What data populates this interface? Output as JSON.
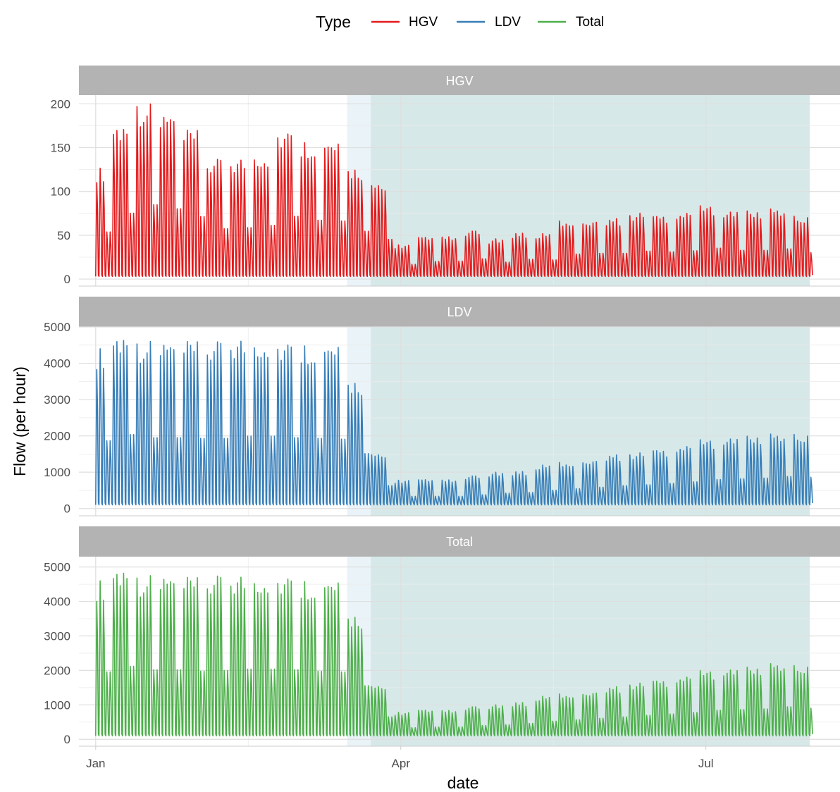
{
  "chart_data": {
    "type": "line",
    "xlabel": "date",
    "ylabel": "Flow (per hour)",
    "legend": {
      "title": "Type",
      "position": "top",
      "entries": [
        {
          "name": "HGV",
          "color": "#e41a1c"
        },
        {
          "name": "LDV",
          "color": "#377eb8"
        },
        {
          "name": "Total",
          "color": "#4daf4a"
        }
      ]
    },
    "x_ticks": [
      "Jan",
      "Apr",
      "Jul"
    ],
    "x_tick_dates": [
      "2020-01-01",
      "2020-04-01",
      "2020-07-01"
    ],
    "xlim": [
      "2019-12-27",
      "2020-08-10"
    ],
    "data_range": [
      "2020-01-01",
      "2020-08-01"
    ],
    "shaded_regions": [
      {
        "start": "2020-03-16",
        "end": "2020-03-23",
        "color": "#eaf3f8"
      },
      {
        "start": "2020-03-23",
        "end": "2020-08-01",
        "color": "#d7e8e8"
      }
    ],
    "grid": true,
    "panels": [
      {
        "strip": "HGV",
        "color": "#e41a1c",
        "ylim": [
          -8,
          210
        ],
        "y_ticks": [
          "0",
          "50",
          "100",
          "150",
          "200"
        ],
        "y_tick_values": [
          0,
          50,
          100,
          150,
          200
        ],
        "series": {
          "name": "HGV",
          "weekly_peaks": [
            {
              "week_of": "2020-01-01",
              "peak": 128
            },
            {
              "week_of": "2020-01-06",
              "peak": 179
            },
            {
              "week_of": "2020-01-13",
              "peak": 202
            },
            {
              "week_of": "2020-01-20",
              "peak": 191
            },
            {
              "week_of": "2020-01-27",
              "peak": 170
            },
            {
              "week_of": "2020-02-03",
              "peak": 137
            },
            {
              "week_of": "2020-02-10",
              "peak": 140
            },
            {
              "week_of": "2020-02-17",
              "peak": 146
            },
            {
              "week_of": "2020-02-24",
              "peak": 171
            },
            {
              "week_of": "2020-03-02",
              "peak": 160
            },
            {
              "week_of": "2020-03-09",
              "peak": 158
            },
            {
              "week_of": "2020-03-16",
              "peak": 130
            },
            {
              "week_of": "2020-03-23",
              "peak": 108
            },
            {
              "week_of": "2020-03-30",
              "peak": 40
            },
            {
              "week_of": "2020-04-06",
              "peak": 48
            },
            {
              "week_of": "2020-04-13",
              "peak": 49
            },
            {
              "week_of": "2020-04-20",
              "peak": 55
            },
            {
              "week_of": "2020-04-27",
              "peak": 46
            },
            {
              "week_of": "2020-05-04",
              "peak": 54
            },
            {
              "week_of": "2020-05-11",
              "peak": 52
            },
            {
              "week_of": "2020-05-18",
              "peak": 68
            },
            {
              "week_of": "2020-05-25",
              "peak": 70
            },
            {
              "week_of": "2020-06-01",
              "peak": 70
            },
            {
              "week_of": "2020-06-08",
              "peak": 76
            },
            {
              "week_of": "2020-06-15",
              "peak": 74
            },
            {
              "week_of": "2020-06-22",
              "peak": 77
            },
            {
              "week_of": "2020-06-29",
              "peak": 84
            },
            {
              "week_of": "2020-07-06",
              "peak": 78
            },
            {
              "week_of": "2020-07-13",
              "peak": 78
            },
            {
              "week_of": "2020-07-20",
              "peak": 82
            },
            {
              "week_of": "2020-07-27",
              "peak": 72
            }
          ],
          "typical_trough": 3
        }
      },
      {
        "strip": "LDV",
        "color": "#377eb8",
        "ylim": [
          -200,
          5000
        ],
        "y_ticks": [
          "0",
          "1000",
          "2000",
          "3000",
          "4000",
          "5000"
        ],
        "y_tick_values": [
          0,
          1000,
          2000,
          3000,
          4000,
          5000
        ],
        "series": {
          "name": "LDV",
          "weekly_peaks": [
            {
              "week_of": "2020-01-01",
              "peak": 4450
            },
            {
              "week_of": "2020-01-06",
              "peak": 4850
            },
            {
              "week_of": "2020-01-13",
              "peak": 4650
            },
            {
              "week_of": "2020-01-20",
              "peak": 4650
            },
            {
              "week_of": "2020-01-27",
              "peak": 4600
            },
            {
              "week_of": "2020-02-03",
              "peak": 4600
            },
            {
              "week_of": "2020-02-10",
              "peak": 4750
            },
            {
              "week_of": "2020-02-17",
              "peak": 4750
            },
            {
              "week_of": "2020-02-24",
              "peak": 4650
            },
            {
              "week_of": "2020-03-02",
              "peak": 4600
            },
            {
              "week_of": "2020-03-09",
              "peak": 4550
            },
            {
              "week_of": "2020-03-16",
              "peak": 3600
            },
            {
              "week_of": "2020-03-23",
              "peak": 1500
            },
            {
              "week_of": "2020-03-30",
              "peak": 800
            },
            {
              "week_of": "2020-04-06",
              "peak": 800
            },
            {
              "week_of": "2020-04-13",
              "peak": 800
            },
            {
              "week_of": "2020-04-20",
              "peak": 900
            },
            {
              "week_of": "2020-04-27",
              "peak": 1000
            },
            {
              "week_of": "2020-05-04",
              "peak": 1050
            },
            {
              "week_of": "2020-05-11",
              "peak": 1200
            },
            {
              "week_of": "2020-05-18",
              "peak": 1300
            },
            {
              "week_of": "2020-05-25",
              "peak": 1400
            },
            {
              "week_of": "2020-06-01",
              "peak": 1500
            },
            {
              "week_of": "2020-06-08",
              "peak": 1550
            },
            {
              "week_of": "2020-06-15",
              "peak": 1650
            },
            {
              "week_of": "2020-06-22",
              "peak": 1750
            },
            {
              "week_of": "2020-06-29",
              "peak": 1900
            },
            {
              "week_of": "2020-07-06",
              "peak": 1950
            },
            {
              "week_of": "2020-07-13",
              "peak": 2000
            },
            {
              "week_of": "2020-07-20",
              "peak": 2100
            },
            {
              "week_of": "2020-07-27",
              "peak": 2050
            }
          ],
          "typical_trough": 100
        }
      },
      {
        "strip": "Total",
        "color": "#4daf4a",
        "ylim": [
          -200,
          5300
        ],
        "y_ticks": [
          "0",
          "1000",
          "2000",
          "3000",
          "4000",
          "5000"
        ],
        "y_tick_values": [
          0,
          1000,
          2000,
          3000,
          4000,
          5000
        ],
        "series": {
          "name": "Total",
          "weekly_peaks": [
            {
              "week_of": "2020-01-01",
              "peak": 4650
            },
            {
              "week_of": "2020-01-06",
              "peak": 5050
            },
            {
              "week_of": "2020-01-13",
              "peak": 4800
            },
            {
              "week_of": "2020-01-20",
              "peak": 4800
            },
            {
              "week_of": "2020-01-27",
              "peak": 4700
            },
            {
              "week_of": "2020-02-03",
              "peak": 4750
            },
            {
              "week_of": "2020-02-10",
              "peak": 4850
            },
            {
              "week_of": "2020-02-17",
              "peak": 4850
            },
            {
              "week_of": "2020-02-24",
              "peak": 4800
            },
            {
              "week_of": "2020-03-02",
              "peak": 4700
            },
            {
              "week_of": "2020-03-09",
              "peak": 4650
            },
            {
              "week_of": "2020-03-16",
              "peak": 3700
            },
            {
              "week_of": "2020-03-23",
              "peak": 1550
            },
            {
              "week_of": "2020-03-30",
              "peak": 800
            },
            {
              "week_of": "2020-04-06",
              "peak": 850
            },
            {
              "week_of": "2020-04-13",
              "peak": 850
            },
            {
              "week_of": "2020-04-20",
              "peak": 950
            },
            {
              "week_of": "2020-04-27",
              "peak": 1000
            },
            {
              "week_of": "2020-05-04",
              "peak": 1100
            },
            {
              "week_of": "2020-05-11",
              "peak": 1250
            },
            {
              "week_of": "2020-05-18",
              "peak": 1350
            },
            {
              "week_of": "2020-05-25",
              "peak": 1450
            },
            {
              "week_of": "2020-06-01",
              "peak": 1550
            },
            {
              "week_of": "2020-06-08",
              "peak": 1650
            },
            {
              "week_of": "2020-06-15",
              "peak": 1750
            },
            {
              "week_of": "2020-06-22",
              "peak": 1850
            },
            {
              "week_of": "2020-06-29",
              "peak": 2000
            },
            {
              "week_of": "2020-07-06",
              "peak": 2050
            },
            {
              "week_of": "2020-07-13",
              "peak": 2100
            },
            {
              "week_of": "2020-07-20",
              "peak": 2250
            },
            {
              "week_of": "2020-07-27",
              "peak": 2150
            }
          ],
          "typical_trough": 100
        }
      }
    ]
  }
}
